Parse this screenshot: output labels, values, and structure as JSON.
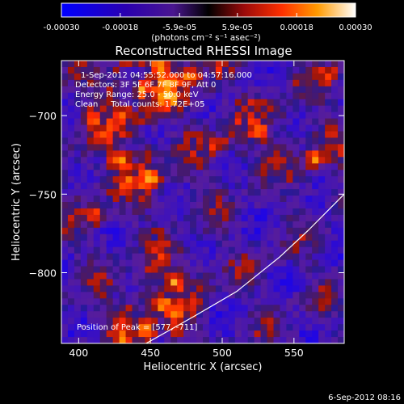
{
  "colorbar": {
    "tick_labels": [
      "-0.00030",
      "-0.00018",
      "-5.9e-05",
      "5.9e-05",
      "0.00018",
      "0.00030"
    ],
    "tick_values": [
      -0.0003,
      -0.00018,
      -5.9e-05,
      5.9e-05,
      0.00018,
      0.0003
    ],
    "range": [
      -0.0003,
      0.0003
    ],
    "unit_label": "(photons cm⁻² s⁻¹ asec⁻²)"
  },
  "chart_data": {
    "type": "heatmap",
    "title": "Reconstructed RHESSI Image",
    "xlabel": "Heliocentric X (arcsec)",
    "ylabel": "Heliocentric Y (arcsec)",
    "xlim": [
      388,
      585
    ],
    "ylim": [
      -845,
      -665
    ],
    "x_ticks": [
      400,
      450,
      500,
      550
    ],
    "y_ticks": [
      -700,
      -750,
      -800
    ],
    "annotations": [
      "1-Sep-2012 04:55:52.000 to 04:57:16.000",
      "Detectors: 3F 5F 6F 7F 8F 9F, Att 0",
      "Energy Range: 25.0 - 50.0 keV",
      "Clean     Total counts: 1.72E+05"
    ],
    "peak_label": "Position of Peak = [577, -711]",
    "peak_position": [
      577,
      -711
    ],
    "limb_curve": [
      [
        447,
        -845
      ],
      [
        480,
        -828
      ],
      [
        510,
        -812
      ],
      [
        540,
        -790
      ],
      [
        560,
        -773
      ],
      [
        585,
        -750
      ]
    ]
  },
  "footer": {
    "timestamp": "6-Sep-2012 08:16"
  },
  "colors": {
    "limb": "#ffffff",
    "background": "#000000"
  }
}
